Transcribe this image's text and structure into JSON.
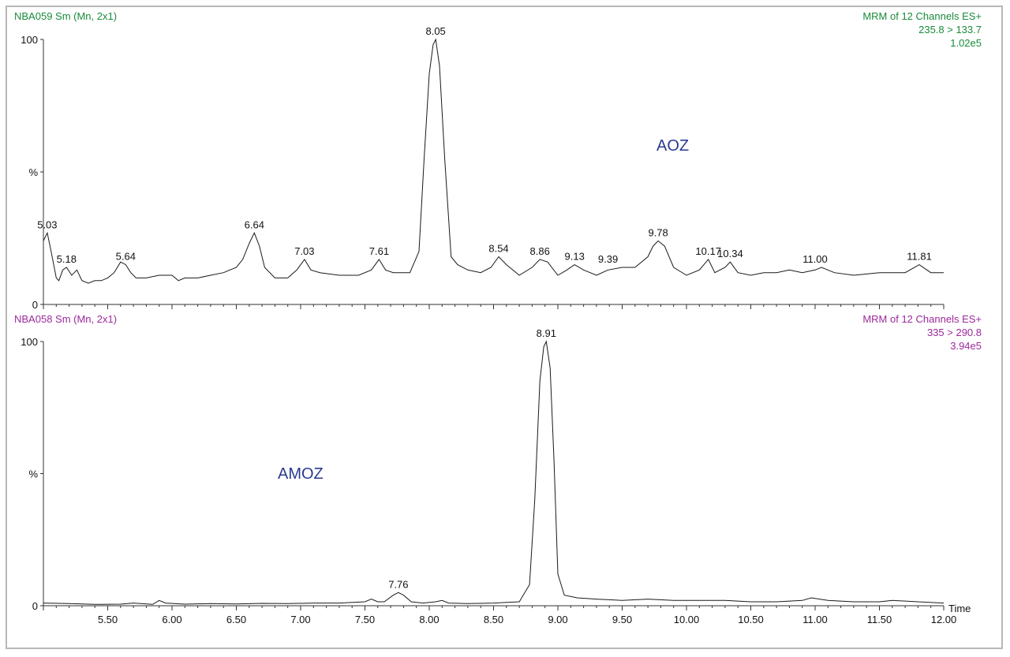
{
  "colors": {
    "top": "#1a8a3a",
    "bottom": "#9b2a9b",
    "compound": "#2b3a8f",
    "trace": "#1a1a1a"
  },
  "top": {
    "sample": "NBA059 Sm (Mn, 2x1)",
    "method": "MRM of 12 Channels ES+",
    "transition": "235.8 > 133.7",
    "intensity": "1.02e5",
    "compound": "AOZ"
  },
  "bottom": {
    "sample": "NBA058 Sm (Mn, 2x1)",
    "method": "MRM of 12 Channels ES+",
    "transition": "335 > 290.8",
    "intensity": "3.94e5",
    "compound": "AMOZ"
  },
  "chart_data": [
    {
      "type": "line",
      "xlim": [
        5.0,
        12.0
      ],
      "ylim": [
        0,
        100
      ],
      "y_ticks": [
        "100",
        "%",
        "0"
      ],
      "x_ticks": [],
      "x": [
        5.0,
        5.03,
        5.06,
        5.1,
        5.12,
        5.15,
        5.18,
        5.22,
        5.26,
        5.3,
        5.35,
        5.4,
        5.45,
        5.5,
        5.55,
        5.6,
        5.64,
        5.68,
        5.72,
        5.8,
        5.9,
        6.0,
        6.05,
        6.1,
        6.15,
        6.2,
        6.3,
        6.4,
        6.5,
        6.55,
        6.6,
        6.64,
        6.68,
        6.72,
        6.8,
        6.9,
        6.97,
        7.03,
        7.08,
        7.15,
        7.3,
        7.45,
        7.55,
        7.61,
        7.66,
        7.72,
        7.85,
        7.92,
        7.96,
        8.0,
        8.03,
        8.05,
        8.08,
        8.12,
        8.17,
        8.22,
        8.3,
        8.4,
        8.48,
        8.54,
        8.6,
        8.7,
        8.8,
        8.86,
        8.92,
        9.0,
        9.07,
        9.13,
        9.2,
        9.3,
        9.39,
        9.5,
        9.6,
        9.7,
        9.74,
        9.78,
        9.83,
        9.9,
        10.0,
        10.1,
        10.17,
        10.22,
        10.3,
        10.34,
        10.4,
        10.5,
        10.6,
        10.7,
        10.8,
        10.9,
        11.0,
        11.05,
        11.15,
        11.3,
        11.5,
        11.7,
        11.81,
        11.9,
        12.0
      ],
      "series": [
        {
          "values": [
            24,
            27,
            20,
            10,
            9,
            13,
            14,
            11,
            13,
            9,
            8,
            9,
            9,
            10,
            12,
            16,
            15,
            12,
            10,
            10,
            11,
            11,
            9,
            10,
            10,
            10,
            11,
            12,
            14,
            17,
            23,
            27,
            22,
            14,
            10,
            10,
            13,
            17,
            13,
            12,
            11,
            11,
            13,
            17,
            13,
            12,
            12,
            20,
            55,
            87,
            98,
            100,
            90,
            55,
            18,
            15,
            13,
            12,
            14,
            18,
            15,
            11,
            14,
            17,
            16,
            11,
            13,
            15,
            13,
            11,
            13,
            14,
            14,
            18,
            22,
            24,
            22,
            14,
            11,
            13,
            17,
            12,
            14,
            16,
            12,
            11,
            12,
            12,
            13,
            12,
            13,
            14,
            12,
            11,
            12,
            12,
            15,
            12,
            12
          ]
        }
      ],
      "annotations": [
        {
          "x": 5.03,
          "y": 27,
          "label": "5.03"
        },
        {
          "x": 5.18,
          "y": 14,
          "label": "5.18"
        },
        {
          "x": 5.64,
          "y": 15,
          "label": "5.64"
        },
        {
          "x": 6.64,
          "y": 27,
          "label": "6.64"
        },
        {
          "x": 7.03,
          "y": 17,
          "label": "7.03"
        },
        {
          "x": 7.61,
          "y": 17,
          "label": "7.61"
        },
        {
          "x": 8.05,
          "y": 100,
          "label": "8.05"
        },
        {
          "x": 8.54,
          "y": 18,
          "label": "8.54"
        },
        {
          "x": 8.86,
          "y": 17,
          "label": "8.86"
        },
        {
          "x": 9.13,
          "y": 15,
          "label": "9.13"
        },
        {
          "x": 9.39,
          "y": 14,
          "label": "9.39"
        },
        {
          "x": 9.78,
          "y": 24,
          "label": "9.78"
        },
        {
          "x": 10.17,
          "y": 17,
          "label": "10.17"
        },
        {
          "x": 10.34,
          "y": 16,
          "label": "10.34"
        },
        {
          "x": 11.0,
          "y": 14,
          "label": "11.00"
        },
        {
          "x": 11.81,
          "y": 15,
          "label": "11.81"
        }
      ]
    },
    {
      "type": "line",
      "xlim": [
        5.0,
        12.0
      ],
      "ylim": [
        0,
        100
      ],
      "y_ticks": [
        "100",
        "%",
        "0"
      ],
      "xlabel": "Time",
      "x_ticks": [
        "5.50",
        "6.00",
        "6.50",
        "7.00",
        "7.50",
        "8.00",
        "8.50",
        "9.00",
        "9.50",
        "10.00",
        "10.50",
        "11.00",
        "11.50",
        "12.00"
      ],
      "x": [
        5.0,
        5.2,
        5.4,
        5.6,
        5.7,
        5.85,
        5.9,
        5.95,
        6.1,
        6.3,
        6.5,
        6.7,
        6.9,
        7.1,
        7.3,
        7.5,
        7.55,
        7.6,
        7.65,
        7.72,
        7.76,
        7.8,
        7.86,
        7.95,
        8.05,
        8.1,
        8.15,
        8.3,
        8.5,
        8.7,
        8.78,
        8.82,
        8.86,
        8.89,
        8.91,
        8.94,
        8.97,
        9.0,
        9.05,
        9.15,
        9.3,
        9.5,
        9.7,
        9.9,
        10.1,
        10.3,
        10.5,
        10.7,
        10.9,
        10.97,
        11.1,
        11.3,
        11.5,
        11.6,
        11.8,
        12.0
      ],
      "series": [
        {
          "values": [
            1,
            0.8,
            0.5,
            0.6,
            1,
            0.5,
            2,
            1,
            0.6,
            0.8,
            0.7,
            0.9,
            0.8,
            1,
            1,
            1.5,
            2.5,
            1.5,
            1.5,
            4,
            5,
            4,
            1.5,
            1,
            1.5,
            2,
            1,
            0.8,
            1,
            1.5,
            8,
            40,
            85,
            98,
            100,
            90,
            55,
            12,
            4,
            3,
            2.5,
            2,
            2.5,
            2,
            2,
            2,
            1.5,
            1.5,
            2,
            3,
            2,
            1.5,
            1.5,
            2,
            1.5,
            1
          ]
        }
      ],
      "annotations": [
        {
          "x": 7.76,
          "y": 5,
          "label": "7.76"
        },
        {
          "x": 8.91,
          "y": 100,
          "label": "8.91"
        }
      ]
    }
  ]
}
